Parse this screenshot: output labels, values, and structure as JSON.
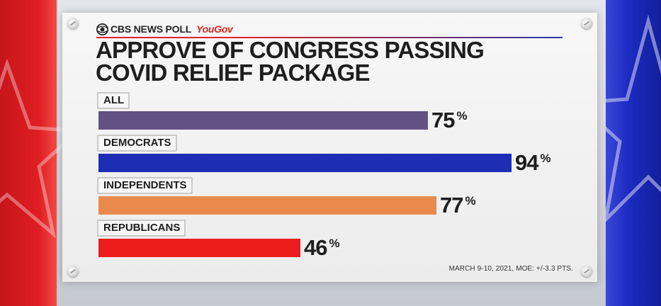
{
  "header": {
    "brand": "CBS NEWS POLL",
    "partner": "YouGov"
  },
  "colors": {
    "all": "#625283",
    "democrats": "#1d2db4",
    "independents": "#e98a4c",
    "republicans": "#ec1c1c"
  },
  "chart_data": {
    "type": "bar",
    "title": "APPROVE OF CONGRESS PASSING COVID RELIEF PACKAGE",
    "categories": [
      "ALL",
      "DEMOCRATS",
      "INDEPENDENTS",
      "REPUBLICANS"
    ],
    "values": [
      75,
      94,
      77,
      46
    ],
    "value_suffix": "%",
    "orientation": "horizontal",
    "xlim": [
      0,
      100
    ],
    "grid": false
  },
  "footnote": "MARCH 9-10, 2021, MOE: +/-3.3 PTS."
}
